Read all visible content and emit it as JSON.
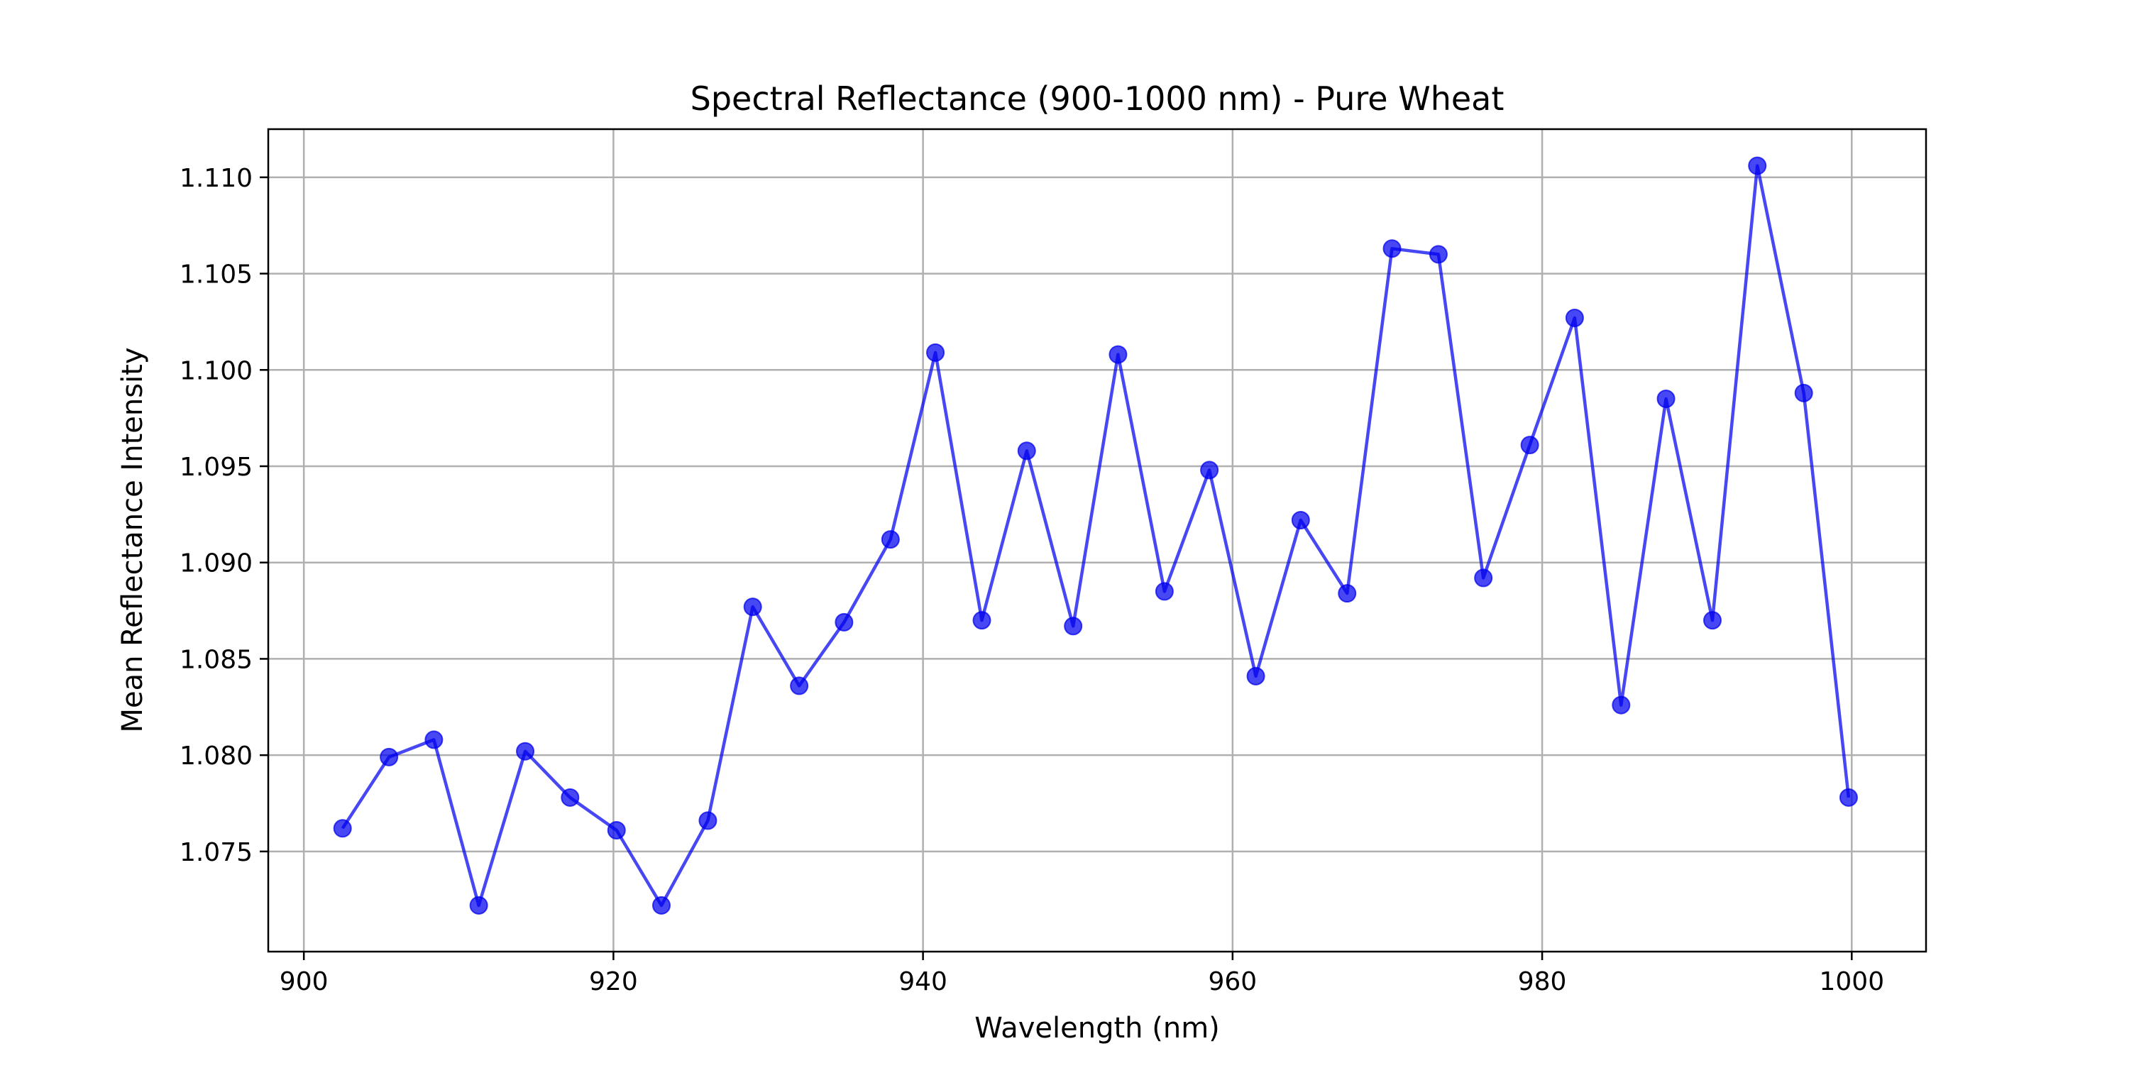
{
  "chart_data": {
    "type": "line",
    "title": "Spectral Reflectance (900-1000 nm) - Pure Wheat",
    "xlabel": "Wavelength (nm)",
    "ylabel": "Mean Reflectance Intensity",
    "xlim": [
      897.7,
      1004.8
    ],
    "ylim": [
      1.0698,
      1.1125
    ],
    "xticks": [
      900,
      920,
      940,
      960,
      980,
      1000
    ],
    "xtick_labels": [
      "900",
      "920",
      "940",
      "960",
      "980",
      "1000"
    ],
    "yticks": [
      1.075,
      1.08,
      1.085,
      1.09,
      1.095,
      1.1,
      1.105,
      1.11
    ],
    "ytick_labels": [
      "1.075",
      "1.080",
      "1.085",
      "1.090",
      "1.095",
      "1.100",
      "1.105",
      "1.110"
    ],
    "grid": true,
    "marker": "circle",
    "series": [
      {
        "color": "#0000ee",
        "x": [
          902.5,
          905.5,
          908.4,
          911.3,
          914.3,
          917.2,
          920.2,
          923.1,
          926.1,
          929.0,
          932.0,
          934.9,
          937.9,
          940.8,
          943.8,
          946.7,
          949.7,
          952.6,
          955.6,
          958.5,
          961.5,
          964.4,
          967.4,
          970.3,
          973.3,
          976.2,
          979.2,
          982.1,
          985.1,
          988.0,
          991.0,
          993.9,
          996.9,
          999.8
        ],
        "values": [
          1.0762,
          1.0799,
          1.0808,
          1.0722,
          1.0802,
          1.0778,
          1.0761,
          1.0722,
          1.0766,
          1.0877,
          1.0836,
          1.0869,
          1.0912,
          1.1009,
          1.087,
          1.0958,
          1.0867,
          1.1008,
          1.0885,
          1.0948,
          1.0841,
          1.0922,
          1.0884,
          1.1063,
          1.106,
          1.0892,
          1.0961,
          1.1027,
          1.0826,
          1.0985,
          1.087,
          1.1106,
          1.0988,
          1.0778
        ]
      }
    ]
  }
}
